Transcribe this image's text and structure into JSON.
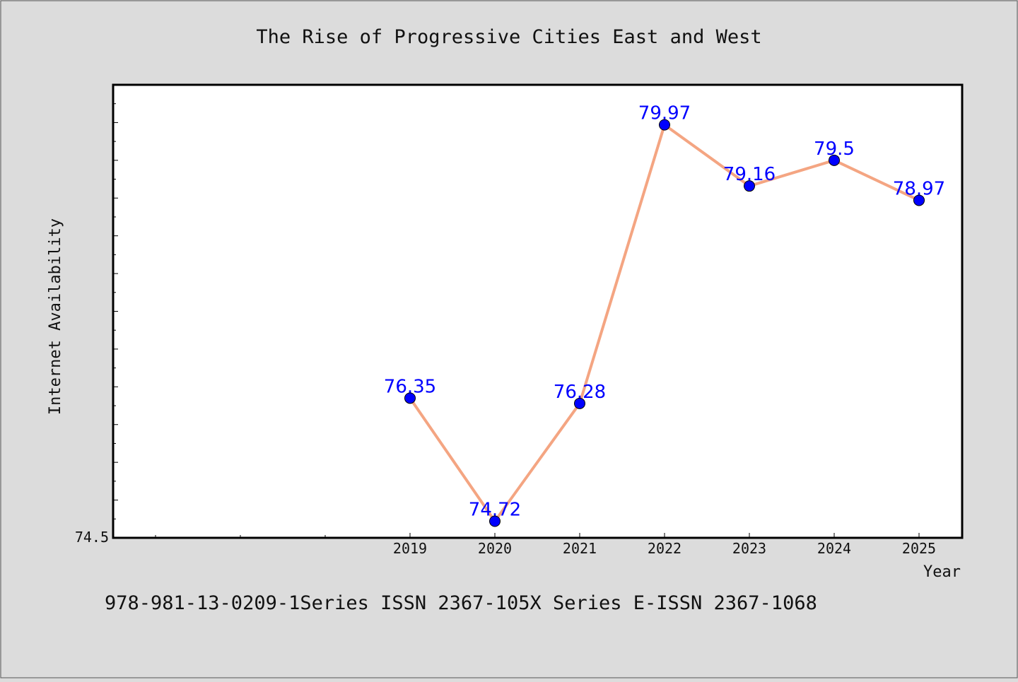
{
  "chart_data": {
    "type": "line",
    "title": "The Rise of Progressive Cities East and West",
    "xlabel": "Year",
    "ylabel": "Internet Availability",
    "categories": [
      "2019",
      "2020",
      "2021",
      "2022",
      "2023",
      "2024",
      "2025"
    ],
    "series": [
      {
        "values": [
          76.35,
          74.72,
          76.28,
          79.97,
          79.16,
          79.5,
          78.97
        ],
        "labels": [
          "76.35",
          "74.72",
          "76.28",
          "79.97",
          "79.16",
          "79.5",
          "78.97"
        ]
      }
    ],
    "ylim": [
      74.5,
      80.5
    ],
    "ytick_labels": [
      "74.5"
    ],
    "grid": false,
    "line_color": "#f4a582",
    "marker_color": "#0000ff",
    "label_color": "#0000ff"
  },
  "footer": {
    "text": "978-981-13-0209-1Series ISSN 2367-105X Series E-ISSN 2367-1068"
  }
}
